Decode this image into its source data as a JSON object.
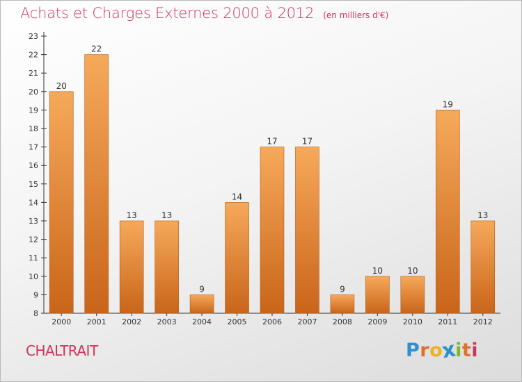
{
  "title": "Achats et Charges Externes 2000 à 2012",
  "unit": "(en milliers d'€)",
  "commune": "CHALTRAIT",
  "brand": {
    "letters": [
      "P",
      "r",
      "o",
      "x",
      "i",
      "t",
      "i"
    ],
    "colors": [
      "#2f8fd0",
      "#e0712a",
      "#f0b020",
      "#2f8fd0",
      "#7bb82a",
      "#e0712a",
      "#d2335a"
    ]
  },
  "colors": {
    "accent": "#d2335a",
    "bar_light": "#f6a95a",
    "bar_dark": "#c9651a",
    "axis": "#333333"
  },
  "chart_data": {
    "type": "bar",
    "categories": [
      "2000",
      "2001",
      "2002",
      "2003",
      "2004",
      "2005",
      "2006",
      "2007",
      "2008",
      "2009",
      "2010",
      "2011",
      "2012"
    ],
    "values": [
      20,
      22,
      13,
      13,
      9,
      14,
      17,
      17,
      9,
      10,
      10,
      19,
      13
    ],
    "ylim": [
      8,
      23
    ],
    "yticks": [
      8,
      9,
      10,
      11,
      12,
      13,
      14,
      15,
      16,
      17,
      18,
      19,
      20,
      21,
      22,
      23
    ],
    "grid": false,
    "data_labels": true
  }
}
